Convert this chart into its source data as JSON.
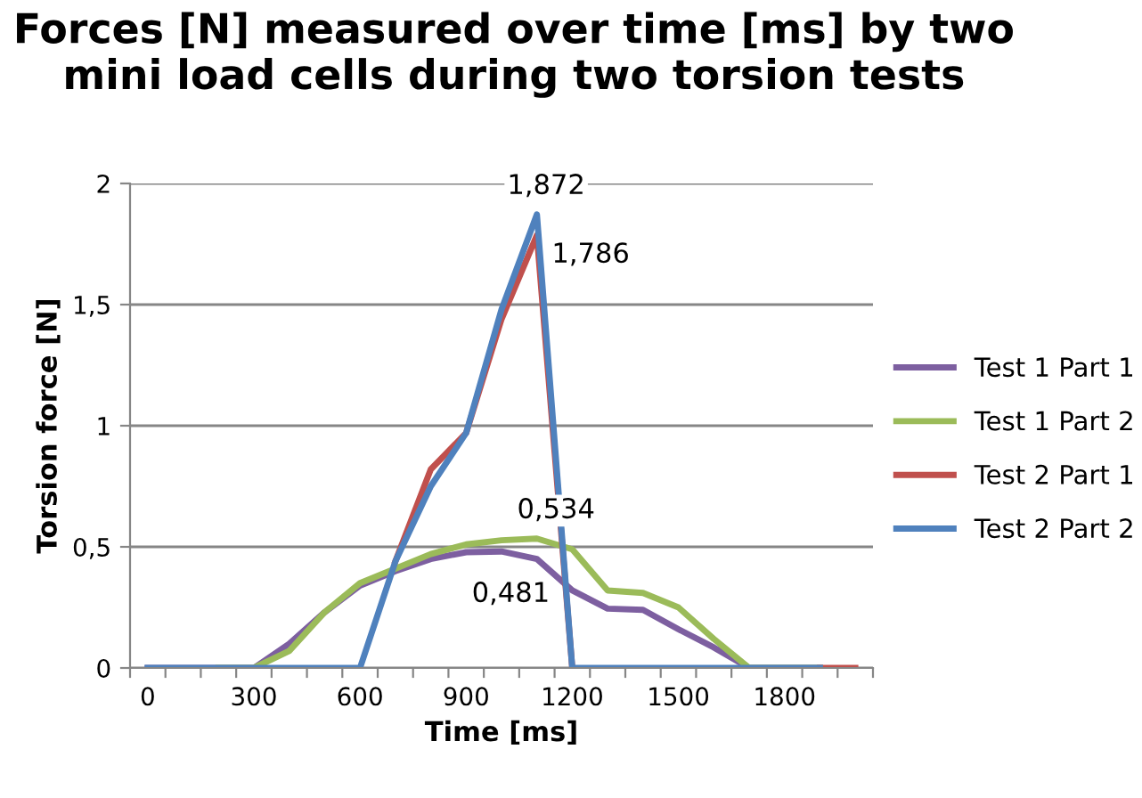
{
  "chart_data": {
    "type": "line",
    "title": "Forces [N] measured over time [ms] by two mini load cells during two torsion tests",
    "xlabel": "Time [ms]",
    "ylabel": "Torsion force [N]",
    "series": [
      {
        "name": "Test 1 Part 1",
        "color": "#7d5fa0",
        "x": [
          0,
          100,
          200,
          300,
          400,
          500,
          600,
          700,
          800,
          900,
          1000,
          1100,
          1200,
          1300,
          1400,
          1500,
          1600,
          1700,
          1800,
          1900
        ],
        "values": [
          0,
          0,
          0,
          0,
          0.1,
          0.23,
          0.34,
          0.4,
          0.45,
          0.478,
          0.481,
          0.45,
          0.32,
          0.245,
          0.24,
          0.16,
          0.085,
          0,
          0,
          0
        ],
        "value_labels": [
          null,
          null,
          null,
          null,
          null,
          null,
          null,
          null,
          null,
          null,
          "0,481",
          null,
          null,
          null,
          null,
          null,
          null,
          null,
          null,
          null
        ]
      },
      {
        "name": "Test 1 Part 2",
        "color": "#9bbb59",
        "x": [
          200,
          300,
          400,
          500,
          600,
          700,
          800,
          900,
          1000,
          1100,
          1200,
          1300,
          1400,
          1500,
          1600,
          1700,
          1800,
          1900
        ],
        "values": [
          0,
          0,
          0.07,
          0.23,
          0.35,
          0.41,
          0.47,
          0.51,
          0.527,
          0.534,
          0.49,
          0.32,
          0.31,
          0.25,
          0.12,
          0,
          0,
          0
        ],
        "value_labels": [
          null,
          null,
          null,
          null,
          null,
          null,
          null,
          null,
          null,
          "0,534",
          null,
          null,
          null,
          null,
          null,
          null,
          null,
          null
        ]
      },
      {
        "name": "Test 2 Part 1",
        "color": "#c0504d",
        "x": [
          700,
          800,
          900,
          1000,
          1100,
          1200,
          1300,
          1400,
          1500,
          1600,
          1700,
          1800,
          1900,
          2000
        ],
        "values": [
          0.44,
          0.82,
          0.97,
          1.44,
          1.786,
          0,
          null,
          null,
          null,
          null,
          null,
          null,
          0,
          0
        ],
        "value_labels": [
          null,
          null,
          null,
          null,
          "1,786",
          null,
          null,
          null,
          null,
          null,
          null,
          null,
          null,
          null
        ]
      },
      {
        "name": "Test 2 Part 2",
        "color": "#4f81bd",
        "x": [
          0,
          100,
          200,
          300,
          400,
          500,
          600,
          700,
          800,
          900,
          1000,
          1100,
          1200,
          1300,
          1400,
          1500,
          1600,
          1700,
          1800,
          1900
        ],
        "values": [
          0,
          0,
          0,
          0,
          0,
          0,
          0,
          0.44,
          0.75,
          0.97,
          1.48,
          1.872,
          0,
          0,
          0,
          0,
          0,
          0,
          0,
          0
        ],
        "value_labels": [
          null,
          null,
          null,
          null,
          null,
          null,
          null,
          null,
          null,
          null,
          null,
          "1,872",
          null,
          null,
          null,
          null,
          null,
          null,
          null,
          null
        ]
      }
    ],
    "xlim": [
      -50,
      2050
    ],
    "xticks": [
      {
        "value": -50,
        "label": null
      },
      {
        "value": 0,
        "label": "0"
      },
      {
        "value": 50,
        "label": null
      },
      {
        "value": 150,
        "label": null
      },
      {
        "value": 250,
        "label": null
      },
      {
        "value": 300,
        "label": "300"
      },
      {
        "value": 350,
        "label": null
      },
      {
        "value": 450,
        "label": null
      },
      {
        "value": 550,
        "label": null
      },
      {
        "value": 600,
        "label": "600"
      },
      {
        "value": 650,
        "label": null
      },
      {
        "value": 750,
        "label": null
      },
      {
        "value": 850,
        "label": null
      },
      {
        "value": 900,
        "label": "900"
      },
      {
        "value": 950,
        "label": null
      },
      {
        "value": 1050,
        "label": null
      },
      {
        "value": 1150,
        "label": null
      },
      {
        "value": 1200,
        "label": "1200"
      },
      {
        "value": 1250,
        "label": null
      },
      {
        "value": 1350,
        "label": null
      },
      {
        "value": 1450,
        "label": null
      },
      {
        "value": 1500,
        "label": "1500"
      },
      {
        "value": 1550,
        "label": null
      },
      {
        "value": 1650,
        "label": null
      },
      {
        "value": 1750,
        "label": null
      },
      {
        "value": 1800,
        "label": "1800"
      },
      {
        "value": 1850,
        "label": null
      },
      {
        "value": 1950,
        "label": null
      },
      {
        "value": 2050,
        "label": null
      }
    ],
    "ylim": [
      0,
      2
    ],
    "yticks": [
      0,
      {
        "value": 0.5,
        "label": "0,5"
      },
      1,
      {
        "value": 1.5,
        "label": "1,5"
      },
      2
    ],
    "grid": "y",
    "legend": "right",
    "marker": "none",
    "line_style": "solid"
  }
}
